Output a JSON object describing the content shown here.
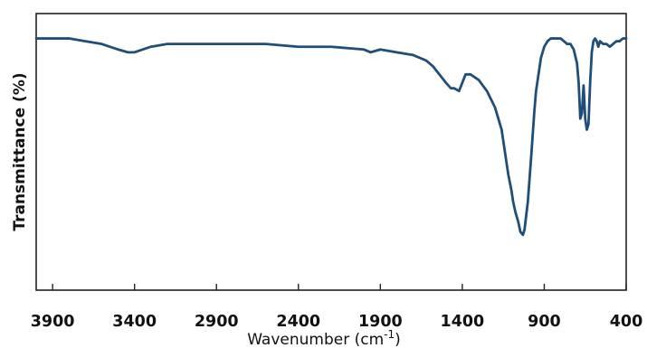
{
  "chart_data": {
    "type": "line",
    "xlabel": "Wavenumber",
    "xlabel_unit": "(cm",
    "xlabel_unit_exp": "-1",
    "xlabel_unit_close": ")",
    "ylabel": "Transmittance (%)",
    "xlim": [
      4000,
      400
    ],
    "ylim": [
      0,
      100
    ],
    "x_reversed": true,
    "grid": false,
    "line_color": "#1f4e79",
    "x_ticks": [
      3900,
      3400,
      2900,
      2400,
      1900,
      1400,
      900,
      400
    ],
    "x_tick_labels": [
      "3900",
      "3400",
      "2900",
      "2400",
      "1900",
      "1400",
      "900",
      "400"
    ],
    "series": [
      {
        "x": [
          4000,
          3800,
          3700,
          3600,
          3500,
          3440,
          3400,
          3300,
          3200,
          3000,
          2800,
          2600,
          2400,
          2200,
          2000,
          1960,
          1900,
          1800,
          1700,
          1620,
          1580,
          1540,
          1500,
          1470,
          1450,
          1420,
          1400,
          1380,
          1350,
          1300,
          1250,
          1200,
          1160,
          1140,
          1120,
          1100,
          1090,
          1075,
          1060,
          1045,
          1030,
          1020,
          1000,
          980,
          960,
          950,
          940,
          920,
          900,
          880,
          860,
          840,
          820,
          800,
          780,
          760,
          740,
          720,
          700,
          690,
          680,
          670,
          660,
          650,
          640,
          630,
          620,
          610,
          600,
          590,
          580,
          570,
          560,
          540,
          520,
          500,
          480,
          460,
          440,
          420,
          400
        ],
        "y": [
          91,
          91,
          90,
          89,
          87,
          86,
          86,
          88,
          89,
          89,
          89,
          89,
          88,
          88,
          87,
          86,
          87,
          86,
          85,
          83,
          81,
          78,
          75,
          73,
          73,
          72,
          75,
          78,
          78,
          76,
          72,
          66,
          58,
          50,
          42,
          36,
          32,
          28,
          25,
          21,
          20,
          22,
          32,
          48,
          65,
          72,
          76,
          84,
          88,
          90,
          91,
          91,
          91,
          91,
          90,
          89,
          89,
          87,
          82,
          75,
          62,
          64,
          74,
          62,
          58,
          60,
          75,
          86,
          90,
          91,
          90,
          88,
          90,
          89,
          89,
          88,
          89,
          90,
          90,
          91,
          91
        ]
      }
    ]
  }
}
